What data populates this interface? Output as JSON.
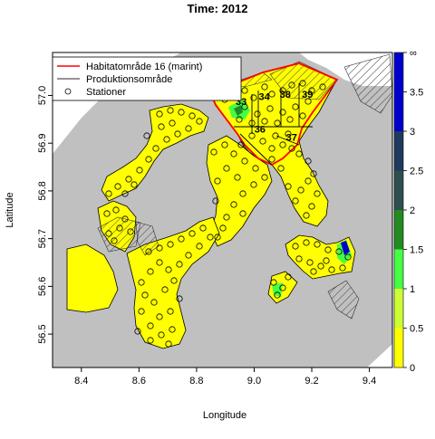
{
  "title": "Time: 2012",
  "xlabel": "Longitude",
  "ylabel": "Latitude",
  "legend": {
    "placement": "top-left",
    "items": [
      {
        "label": "Habitatområde 16 (marint)",
        "color": "#ff0000",
        "kind": "line"
      },
      {
        "label": "Produktionsområde",
        "color": "#555555",
        "kind": "line"
      },
      {
        "label": "Stationer",
        "color": "#000000",
        "kind": "circle"
      }
    ]
  },
  "area_labels": [
    {
      "text": "32",
      "lon": 8.84,
      "lat": 56.995
    },
    {
      "text": "33",
      "lon": 8.955,
      "lat": 56.98
    },
    {
      "text": "34",
      "lon": 9.035,
      "lat": 56.99
    },
    {
      "text": "38",
      "lon": 9.108,
      "lat": 56.995
    },
    {
      "text": "39",
      "lon": 9.185,
      "lat": 56.995
    },
    {
      "text": "36",
      "lon": 9.02,
      "lat": 56.922
    },
    {
      "text": "37",
      "lon": 9.13,
      "lat": 56.905
    }
  ],
  "chart_data": {
    "type": "heatmap",
    "title": "Time: 2012",
    "xlabel": "Longitude",
    "ylabel": "Latitude",
    "xlim": [
      8.3,
      9.48
    ],
    "ylim": [
      56.43,
      57.09
    ],
    "xticks": [
      "8.4",
      "8.6",
      "8.8",
      "9.0",
      "9.2",
      "9.4"
    ],
    "xtick_values": [
      8.4,
      8.6,
      8.8,
      9.0,
      9.2,
      9.4
    ],
    "yticks": [
      "56.5",
      "56.6",
      "56.7",
      "56.8",
      "56.9",
      "57.0"
    ],
    "ytick_values": [
      56.5,
      56.6,
      56.7,
      56.8,
      56.9,
      57.0
    ],
    "colorbar": {
      "ticks": [
        "0",
        "0.5",
        "1",
        "1.5",
        "2",
        "2.5",
        "3",
        "3.5",
        "∞"
      ],
      "tick_values": [
        0,
        0.5,
        1,
        1.5,
        2,
        2.5,
        3,
        3.5,
        4
      ],
      "bins": [
        {
          "from": 0,
          "to": 0.5,
          "color": "#ffff00"
        },
        {
          "from": 0.5,
          "to": 1,
          "color": "#ccff33"
        },
        {
          "from": 1,
          "to": 1.5,
          "color": "#44ff44"
        },
        {
          "from": 1.5,
          "to": 2,
          "color": "#228b22"
        },
        {
          "from": 2,
          "to": 2.5,
          "color": "#2f4f4f"
        },
        {
          "from": 2.5,
          "to": 3,
          "color": "#1e3a5f"
        },
        {
          "from": 3,
          "to": 4,
          "color": "#0000cd"
        }
      ]
    },
    "colors": {
      "land": "#c0c0c0",
      "water": "#ffff00",
      "low_green": "#44ff44",
      "mid_green": "#228b22",
      "high_blue": "#0000cd",
      "habitat_line": "#ff0000"
    }
  }
}
